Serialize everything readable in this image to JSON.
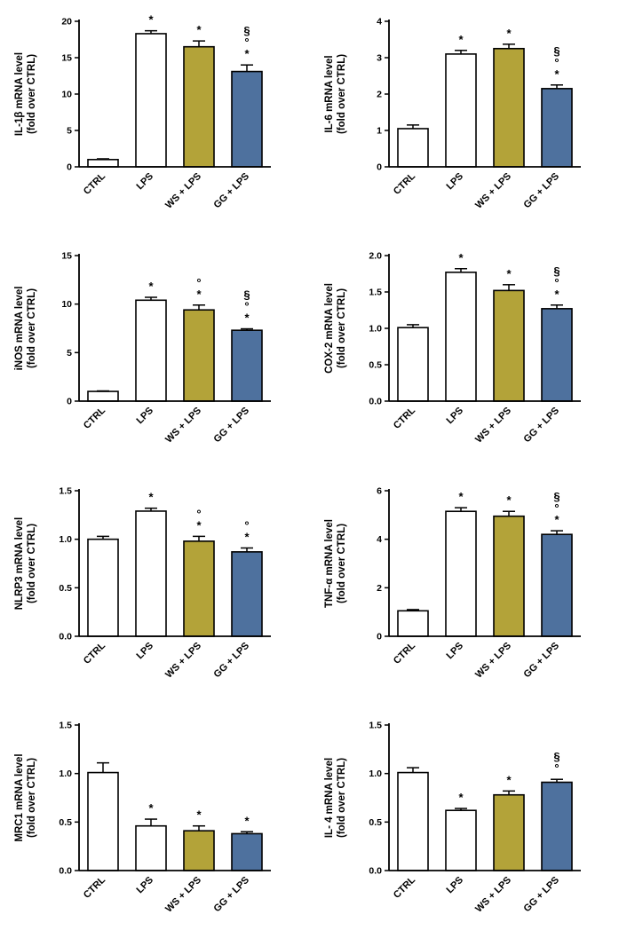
{
  "page": {
    "background": "#ffffff"
  },
  "style": {
    "bar_fills": [
      "#ffffff",
      "#ffffff",
      "#b3a339",
      "#4e719e"
    ],
    "bar_border": "#000000",
    "axis_color": "#000000",
    "text_color": "#000000"
  },
  "chart_data": [
    {
      "id": "il1b",
      "type": "bar",
      "title": "",
      "xlabel": "",
      "ylabel": "IL-1β mRNA level\n(fold over CTRL)",
      "categories": [
        "CTRL",
        "LPS",
        "WS + LPS",
        "GG + LPS"
      ],
      "values": [
        1.0,
        18.3,
        16.5,
        13.1
      ],
      "errors": [
        0.1,
        0.4,
        0.8,
        0.9
      ],
      "annotations": [
        [],
        [
          "*"
        ],
        [
          "*"
        ],
        [
          "*",
          "°",
          "§"
        ]
      ],
      "ylim": [
        0,
        20
      ],
      "yticks": [
        "0",
        "5",
        "10",
        "15",
        "20"
      ]
    },
    {
      "id": "il6",
      "type": "bar",
      "title": "",
      "xlabel": "",
      "ylabel": "IL-6 mRNA level\n(fold over CTRL)",
      "categories": [
        "CTRL",
        "LPS",
        "WS + LPS",
        "GG + LPS"
      ],
      "values": [
        1.05,
        3.1,
        3.25,
        2.15
      ],
      "errors": [
        0.1,
        0.1,
        0.12,
        0.1
      ],
      "annotations": [
        [],
        [
          "*"
        ],
        [
          "*"
        ],
        [
          "*",
          "°",
          "§"
        ]
      ],
      "ylim": [
        0,
        4
      ],
      "yticks": [
        "0",
        "1",
        "2",
        "3",
        "4"
      ]
    },
    {
      "id": "inos",
      "type": "bar",
      "title": "",
      "xlabel": "",
      "ylabel": "iNOS mRNA level\n(fold over CTRL)",
      "categories": [
        "CTRL",
        "LPS",
        "WS + LPS",
        "GG + LPS"
      ],
      "values": [
        1.0,
        10.4,
        9.4,
        7.3
      ],
      "errors": [
        0.05,
        0.3,
        0.5,
        0.15
      ],
      "annotations": [
        [],
        [
          "*"
        ],
        [
          "*",
          "°"
        ],
        [
          "*",
          "°",
          "§"
        ]
      ],
      "ylim": [
        0,
        15
      ],
      "yticks": [
        "0",
        "5",
        "10",
        "15"
      ]
    },
    {
      "id": "cox2",
      "type": "bar",
      "title": "",
      "xlabel": "",
      "ylabel": "COX-2 mRNA level\n(fold over CTRL)",
      "categories": [
        "CTRL",
        "LPS",
        "WS + LPS",
        "GG + LPS"
      ],
      "values": [
        1.01,
        1.77,
        1.52,
        1.27
      ],
      "errors": [
        0.04,
        0.05,
        0.08,
        0.05
      ],
      "annotations": [
        [],
        [
          "*"
        ],
        [
          "*"
        ],
        [
          "*",
          "°",
          "§"
        ]
      ],
      "ylim": [
        0,
        2
      ],
      "yticks": [
        "0.0",
        "0.5",
        "1.0",
        "1.5",
        "2.0"
      ]
    },
    {
      "id": "nlrp3",
      "type": "bar",
      "title": "",
      "xlabel": "",
      "ylabel": "NLRP3 mRNA level\n(fold over CTRL)",
      "categories": [
        "CTRL",
        "LPS",
        "WS + LPS",
        "GG + LPS"
      ],
      "values": [
        1.0,
        1.29,
        0.98,
        0.87
      ],
      "errors": [
        0.03,
        0.03,
        0.05,
        0.04
      ],
      "annotations": [
        [],
        [
          "*"
        ],
        [
          "*",
          "°"
        ],
        [
          "*",
          "°"
        ]
      ],
      "ylim": [
        0,
        1.5
      ],
      "yticks": [
        "0.0",
        "0.5",
        "1.0",
        "1.5"
      ]
    },
    {
      "id": "tnfa",
      "type": "bar",
      "title": "",
      "xlabel": "",
      "ylabel": "TNF-α mRNA level\n(fold over CTRL)",
      "categories": [
        "CTRL",
        "LPS",
        "WS + LPS",
        "GG + LPS"
      ],
      "values": [
        1.05,
        5.15,
        4.95,
        4.2
      ],
      "errors": [
        0.05,
        0.15,
        0.2,
        0.15
      ],
      "annotations": [
        [],
        [
          "*"
        ],
        [
          "*"
        ],
        [
          "*",
          "°",
          "§"
        ]
      ],
      "ylim": [
        0,
        6
      ],
      "yticks": [
        "0",
        "2",
        "4",
        "6"
      ]
    },
    {
      "id": "mrc1",
      "type": "bar",
      "title": "",
      "xlabel": "",
      "ylabel": "MRC1 mRNA level\n(fold over CTRL)",
      "categories": [
        "CTRL",
        "LPS",
        "WS + LPS",
        "GG + LPS"
      ],
      "values": [
        1.01,
        0.46,
        0.41,
        0.38
      ],
      "errors": [
        0.1,
        0.07,
        0.05,
        0.02
      ],
      "annotations": [
        [],
        [
          "*"
        ],
        [
          "*"
        ],
        [
          "*"
        ]
      ],
      "ylim": [
        0,
        1.5
      ],
      "yticks": [
        "0.0",
        "0.5",
        "1.0",
        "1.5"
      ]
    },
    {
      "id": "il4",
      "type": "bar",
      "title": "",
      "xlabel": "",
      "ylabel": "IL- 4 mRNA level\n(fold over CTRL)",
      "categories": [
        "CTRL",
        "LPS",
        "WS + LPS",
        "GG + LPS"
      ],
      "values": [
        1.01,
        0.62,
        0.78,
        0.91
      ],
      "errors": [
        0.05,
        0.02,
        0.04,
        0.03
      ],
      "annotations": [
        [],
        [
          "*"
        ],
        [
          "*"
        ],
        [
          "°",
          "§"
        ]
      ],
      "ylim": [
        0,
        1.5
      ],
      "yticks": [
        "0.0",
        "0.5",
        "1.0",
        "1.5"
      ]
    }
  ]
}
